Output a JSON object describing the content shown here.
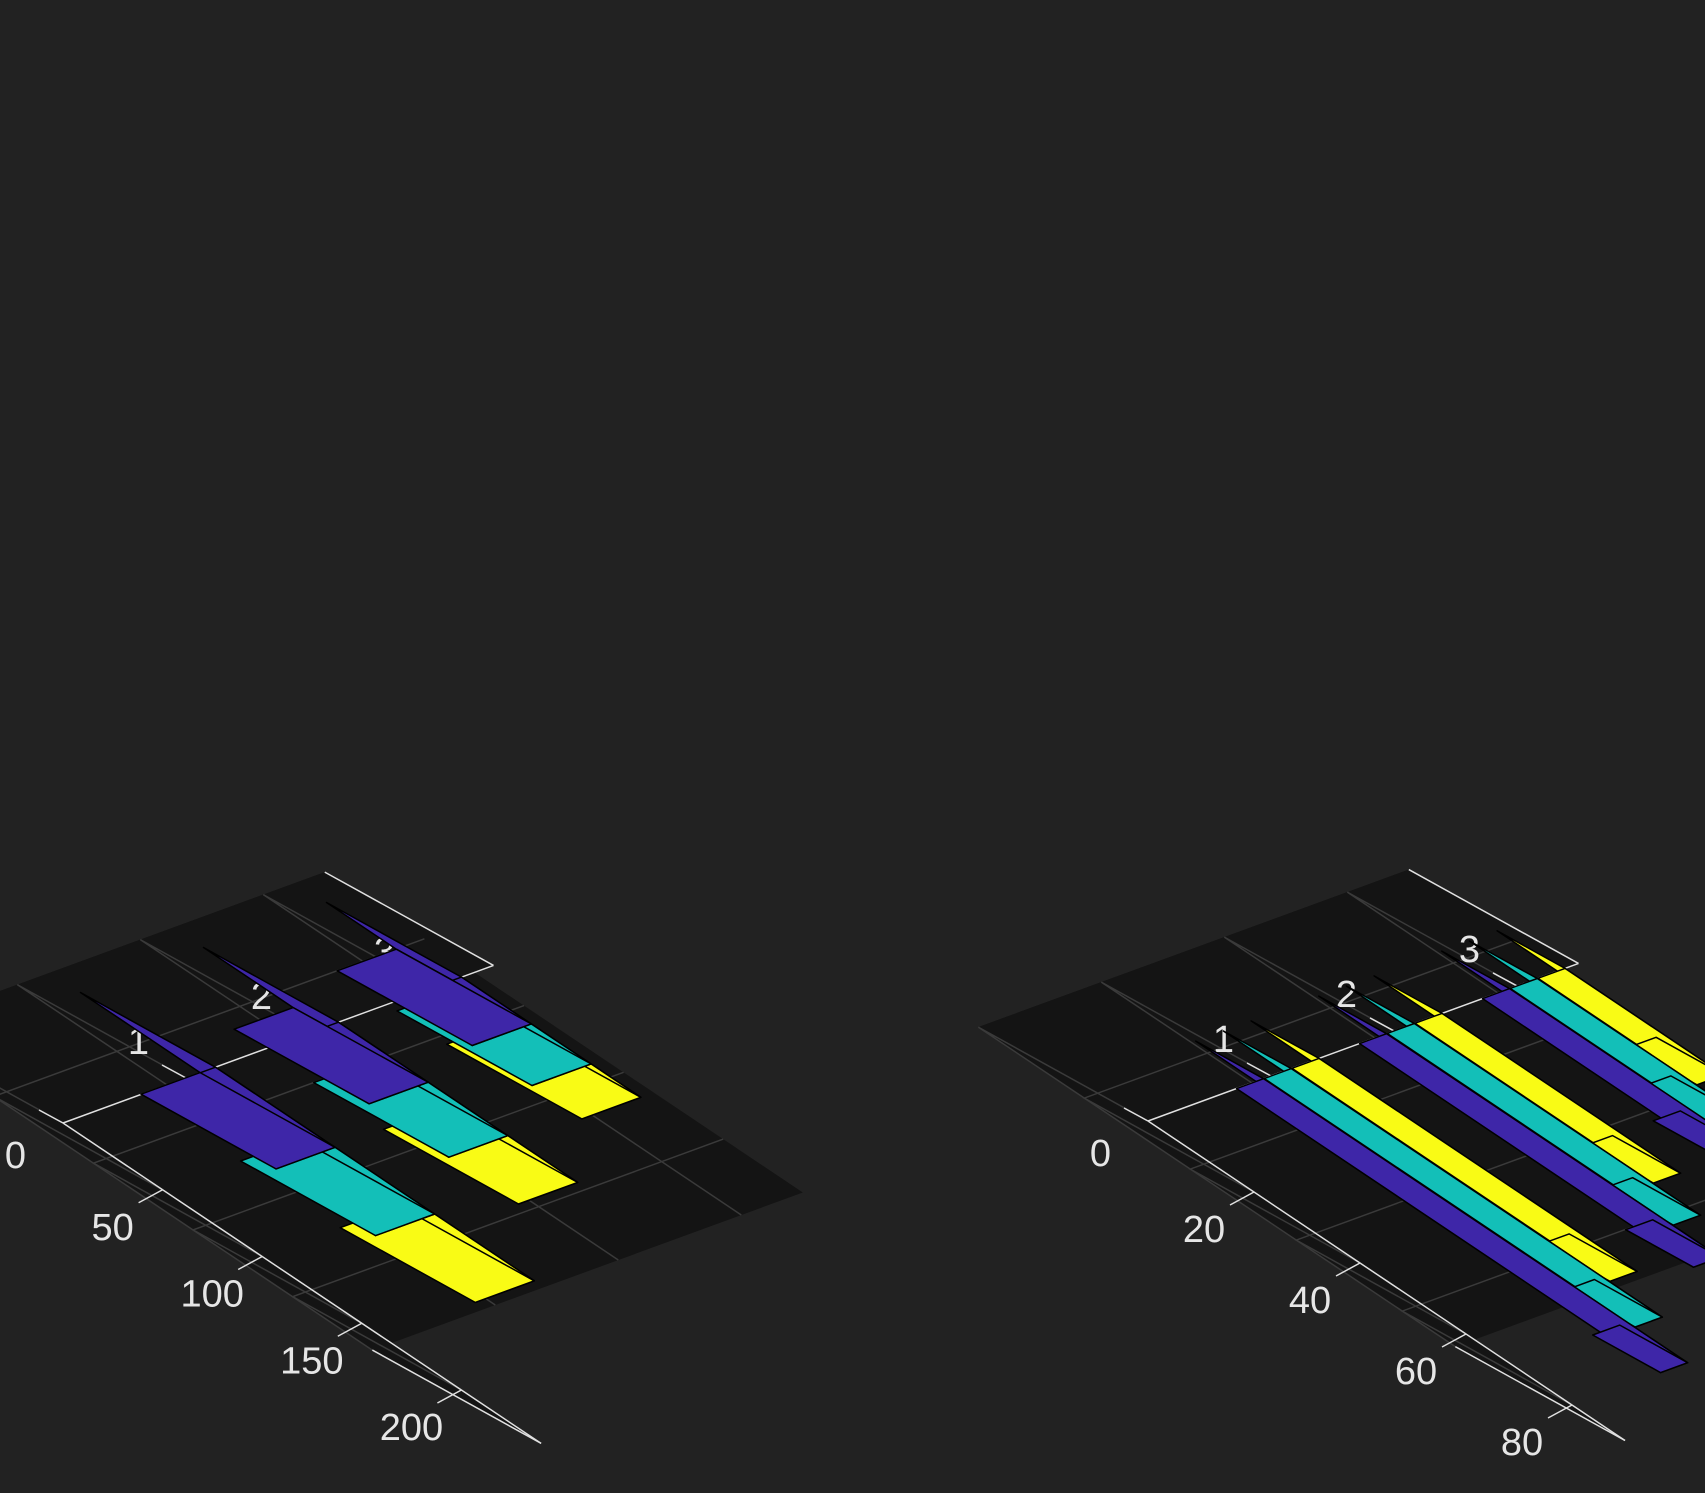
{
  "colors": {
    "background": "#222222",
    "pane": "#141414",
    "grid": "#3a3a3a",
    "axis": "#e0e0e0",
    "edge": "#000000",
    "series": [
      "#3e26a8",
      "#13bfb8",
      "#f9fb15"
    ]
  },
  "chart_data": [
    {
      "type": "bar",
      "style": "stacked-3d",
      "categories": [
        "1",
        "2",
        "3"
      ],
      "series": [
        {
          "values": [
            60,
            45,
            35
          ]
        },
        {
          "values": [
            50,
            40,
            30
          ]
        },
        {
          "values": [
            50,
            35,
            25
          ]
        }
      ],
      "xlim": [
        0,
        240
      ],
      "ylim": [
        0,
        3.5
      ],
      "x_ticks": [
        "50",
        "100",
        "150",
        "200"
      ],
      "y_ticks": [
        "0",
        "1",
        "2",
        "3"
      ],
      "grid": true
    },
    {
      "type": "bar",
      "style": "grouped-3d",
      "categories": [
        "1",
        "2",
        "3"
      ],
      "series": [
        {
          "values": [
            80,
            63,
            45
          ]
        },
        {
          "values": [
            70,
            54,
            38
          ]
        },
        {
          "values": [
            60,
            45,
            30
          ]
        }
      ],
      "xlim": [
        0,
        90
      ],
      "ylim": [
        0,
        3.5
      ],
      "x_ticks": [
        "20",
        "40",
        "60",
        "80"
      ],
      "y_ticks": [
        "0",
        "1",
        "2",
        "3"
      ],
      "grid": true
    }
  ]
}
